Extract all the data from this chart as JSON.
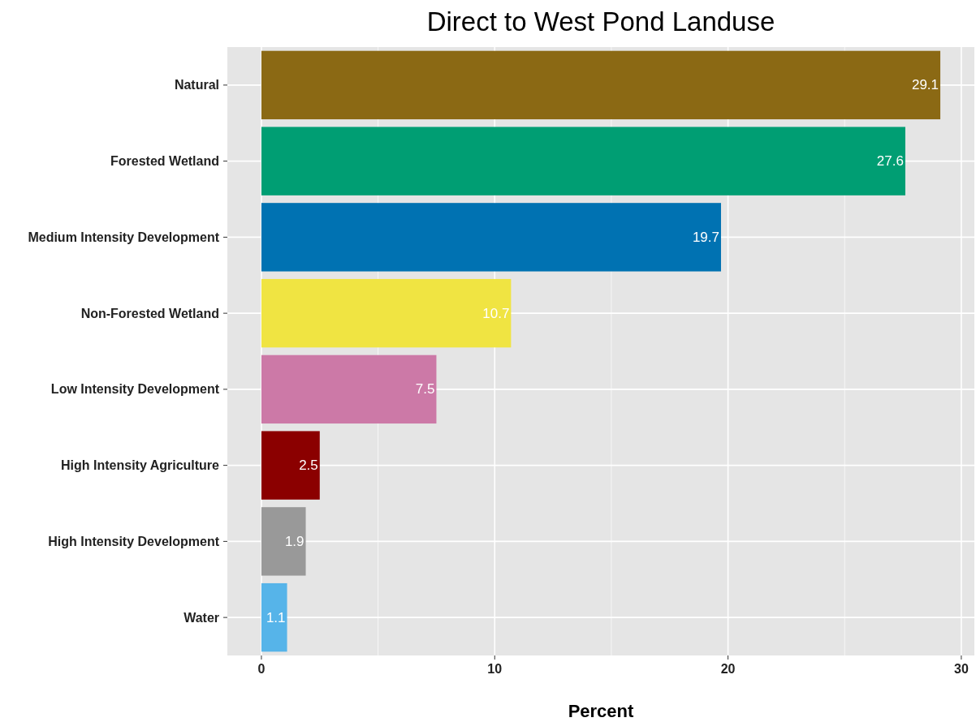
{
  "chart_data": {
    "type": "bar",
    "title": "Direct to West Pond Landuse",
    "xlabel": "Percent",
    "orientation": "horizontal",
    "categories": [
      "Natural",
      "Forested Wetland",
      "Medium Intensity Development",
      "Non-Forested Wetland",
      "Low Intensity Development",
      "High Intensity Agriculture",
      "High Intensity Development",
      "Water"
    ],
    "values": [
      29.1,
      27.6,
      19.7,
      10.7,
      7.5,
      2.5,
      1.9,
      1.1
    ],
    "colors": [
      "#8b6914",
      "#009e73",
      "#0072b2",
      "#f0e442",
      "#cc79a7",
      "#8b0000",
      "#999999",
      "#56b4e9"
    ],
    "xlim": [
      -1.46,
      30.56
    ],
    "xticks": [
      0,
      {
        "value": 5,
        "label": null
      },
      10,
      {
        "value": 15,
        "label": null
      },
      20,
      {
        "value": 25,
        "label": null
      },
      30
    ],
    "grid": true,
    "data_labels": true
  }
}
